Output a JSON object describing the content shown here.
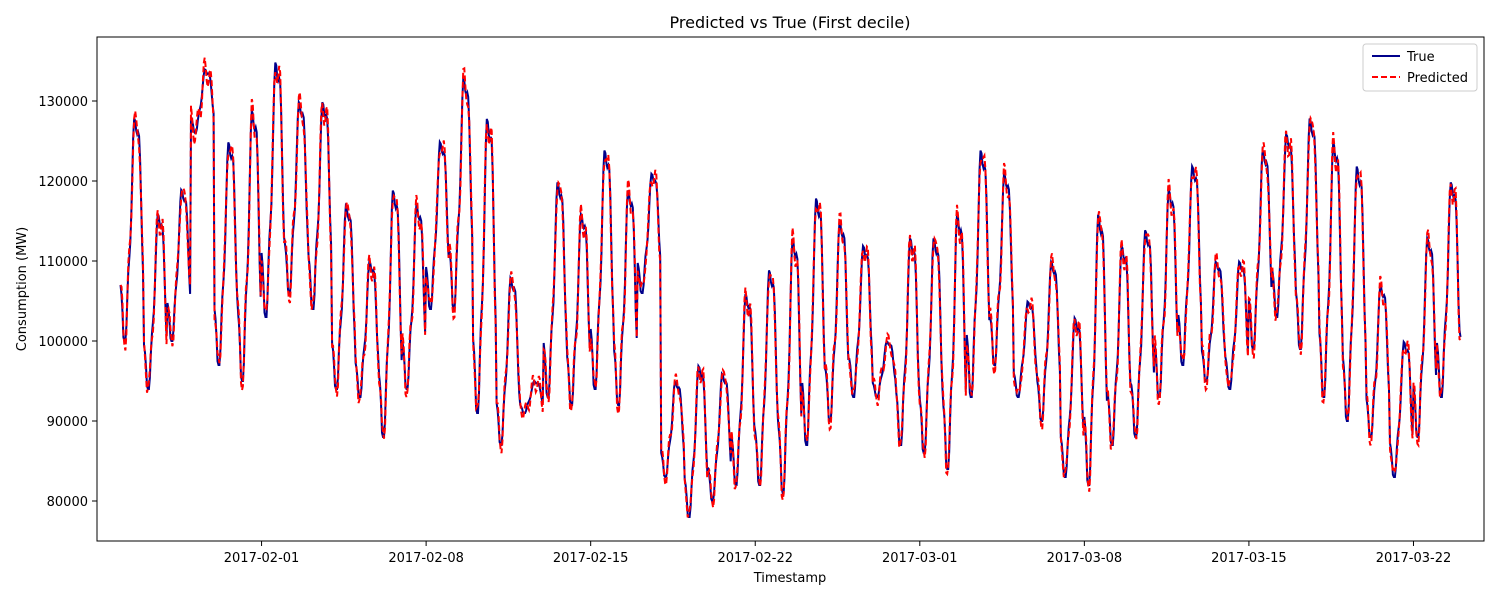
{
  "chart_data": {
    "type": "line",
    "title": "Predicted vs True (First decile)",
    "xlabel": "Timestamp",
    "ylabel": "Consumption (MW)",
    "x_range": [
      "2017-01-25",
      "2017-03-25"
    ],
    "x_data_start": "2017-01-26",
    "x_data_end": "2017-03-24",
    "ylim": [
      75000,
      138000
    ],
    "xticks": [
      "2017-02-01",
      "2017-02-08",
      "2017-02-15",
      "2017-02-22",
      "2017-03-01",
      "2017-03-08",
      "2017-03-15",
      "2017-03-22"
    ],
    "yticks": [
      80000,
      90000,
      100000,
      110000,
      120000,
      130000
    ],
    "grid": false,
    "legend": "top-right",
    "series": [
      {
        "name": "True",
        "color": "#00008b",
        "style": "solid"
      },
      {
        "name": "Predicted",
        "color": "#ff0000",
        "style": "dashed"
      }
    ],
    "daily_peak_trough": [
      [
        128000,
        100000
      ],
      [
        116000,
        94000
      ],
      [
        119000,
        100000
      ],
      [
        134000,
        126000
      ],
      [
        125000,
        97000
      ],
      [
        129000,
        95000
      ],
      [
        135000,
        103000
      ],
      [
        130000,
        106000
      ],
      [
        130000,
        104000
      ],
      [
        117000,
        94000
      ],
      [
        110000,
        93000
      ],
      [
        119000,
        88000
      ],
      [
        117000,
        94000
      ],
      [
        125000,
        104000
      ],
      [
        133000,
        104000
      ],
      [
        128000,
        91000
      ],
      [
        108000,
        87000
      ],
      [
        95000,
        91000
      ],
      [
        120000,
        93000
      ],
      [
        116000,
        92000
      ],
      [
        124000,
        94000
      ],
      [
        119000,
        92000
      ],
      [
        121000,
        106000
      ],
      [
        95000,
        83000
      ],
      [
        97000,
        78000
      ],
      [
        96000,
        80000
      ],
      [
        106000,
        82000
      ],
      [
        109000,
        82000
      ],
      [
        113000,
        81000
      ],
      [
        118000,
        87000
      ],
      [
        115000,
        90000
      ],
      [
        112000,
        93000
      ],
      [
        100000,
        93000
      ],
      [
        113000,
        87000
      ],
      [
        113000,
        86000
      ],
      [
        116000,
        84000
      ],
      [
        124000,
        93000
      ],
      [
        121000,
        97000
      ],
      [
        105000,
        93000
      ],
      [
        110000,
        90000
      ],
      [
        103000,
        83000
      ],
      [
        116000,
        82000
      ],
      [
        112000,
        87000
      ],
      [
        114000,
        88000
      ],
      [
        119000,
        93000
      ],
      [
        122000,
        97000
      ],
      [
        110000,
        95000
      ],
      [
        110000,
        94000
      ],
      [
        124000,
        99000
      ],
      [
        126000,
        103000
      ],
      [
        128000,
        99000
      ],
      [
        125000,
        93000
      ],
      [
        122000,
        90000
      ],
      [
        107000,
        88000
      ],
      [
        100000,
        83000
      ],
      [
        113000,
        88000
      ],
      [
        120000,
        93000
      ],
      [
        120000,
        94000
      ]
    ]
  }
}
